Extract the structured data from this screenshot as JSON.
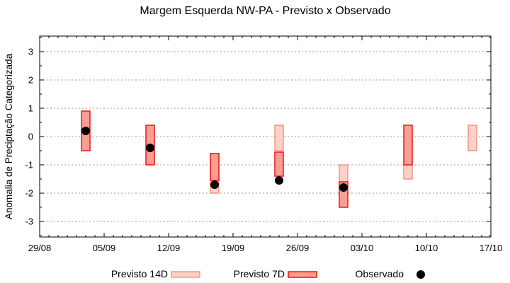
{
  "chart_data": {
    "type": "bar",
    "subtype": "forecast-range-boxes-with-observed-dots",
    "title": "Margem Esquerda NW-PA - Previsto x Observado",
    "ylabel": "Anomalia de Preciptação Categorizada",
    "xlabel": "",
    "ylim": [
      -3.55,
      3.55
    ],
    "yticks": [
      -3,
      -2,
      -1,
      0,
      1,
      2,
      3
    ],
    "y_minor_step": 0.5,
    "xlim_days": [
      0,
      49
    ],
    "x_tick_days": [
      0,
      7,
      14,
      21,
      28,
      35,
      42,
      49
    ],
    "x_ticklabels": [
      "29/08",
      "05/09",
      "12/09",
      "19/09",
      "26/09",
      "03/10",
      "10/10",
      "17/10"
    ],
    "x_minor_step_days": 1,
    "grid": "horizontal dotted lines at integer y values",
    "legend_position": "below plot, horizontal",
    "legend": [
      {
        "label": "Previsto 14D",
        "swatch": "light-pink-box"
      },
      {
        "label": "Previsto 7D",
        "swatch": "red-box"
      },
      {
        "label": "Observado",
        "swatch": "black-dot"
      }
    ],
    "groups": [
      {
        "day": 5,
        "date_approx": "03/09",
        "previsto_14d": null,
        "previsto_7d": [
          -0.5,
          0.9
        ],
        "observado": 0.2
      },
      {
        "day": 12,
        "date_approx": "10/09",
        "previsto_14d": null,
        "previsto_7d": [
          -1.0,
          0.4
        ],
        "observado": -0.4
      },
      {
        "day": 19,
        "date_approx": "17/09",
        "previsto_14d": [
          -2.0,
          -0.6
        ],
        "previsto_7d": [
          -1.55,
          -0.6
        ],
        "observado": -1.7
      },
      {
        "day": 26,
        "date_approx": "24/09",
        "previsto_14d": [
          -0.5,
          0.4
        ],
        "previsto_7d": [
          -1.4,
          -0.55
        ],
        "observado": -1.55
      },
      {
        "day": 33,
        "date_approx": "01/10",
        "previsto_14d": [
          -1.6,
          -1.0
        ],
        "previsto_7d": [
          -2.5,
          -1.6
        ],
        "observado": -1.8
      },
      {
        "day": 40,
        "date_approx": "08/10",
        "previsto_14d": [
          -1.5,
          -1.0
        ],
        "previsto_7d": [
          -1.0,
          0.4
        ],
        "observado": null
      },
      {
        "day": 47,
        "date_approx": "15/10",
        "previsto_14d": [
          -0.5,
          0.4
        ],
        "previsto_7d": null,
        "observado": null
      }
    ],
    "colors": {
      "background": "#ffffff",
      "axis": "#000000",
      "grid": "#9a9a9a",
      "previsto_14d_fill": "#fcd1c9",
      "previsto_14d_border": "#f08a78",
      "previsto_7d_fill": "#fa9d95",
      "previsto_7d_border": "#ee1414",
      "observado": "#000000"
    }
  }
}
